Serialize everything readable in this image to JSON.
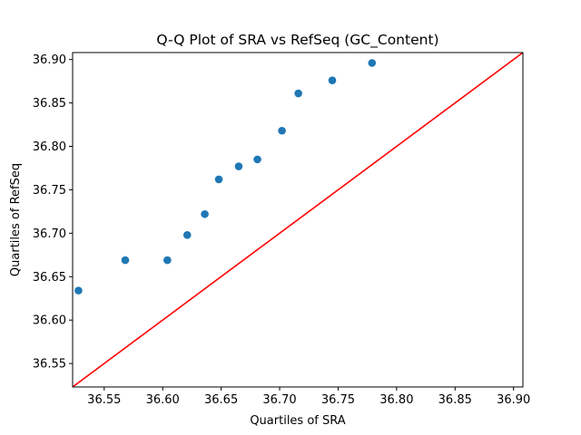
{
  "chart_data": {
    "type": "scatter",
    "title": "Q-Q Plot of SRA vs RefSeq (GC_Content)",
    "xlabel": "Quartiles of SRA",
    "ylabel": "Quartiles of RefSeq",
    "xlim": [
      36.523,
      36.908
    ],
    "ylim": [
      36.523,
      36.908
    ],
    "xticks": [
      36.55,
      36.6,
      36.65,
      36.7,
      36.75,
      36.8,
      36.85,
      36.9
    ],
    "yticks": [
      36.55,
      36.6,
      36.65,
      36.7,
      36.75,
      36.8,
      36.85,
      36.9
    ],
    "xtick_labels": [
      "36.55",
      "36.60",
      "36.65",
      "36.70",
      "36.75",
      "36.80",
      "36.85",
      "36.90"
    ],
    "ytick_labels": [
      "36.55",
      "36.60",
      "36.65",
      "36.70",
      "36.75",
      "36.80",
      "36.85",
      "36.90"
    ],
    "grid": false,
    "series": [
      {
        "type": "scatter",
        "color": "#1f77b4",
        "points": [
          {
            "x": 36.528,
            "y": 36.634
          },
          {
            "x": 36.568,
            "y": 36.669
          },
          {
            "x": 36.604,
            "y": 36.669
          },
          {
            "x": 36.621,
            "y": 36.698
          },
          {
            "x": 36.636,
            "y": 36.722
          },
          {
            "x": 36.648,
            "y": 36.762
          },
          {
            "x": 36.665,
            "y": 36.777
          },
          {
            "x": 36.681,
            "y": 36.785
          },
          {
            "x": 36.702,
            "y": 36.818
          },
          {
            "x": 36.716,
            "y": 36.861
          },
          {
            "x": 36.745,
            "y": 36.876
          },
          {
            "x": 36.779,
            "y": 36.896
          }
        ]
      },
      {
        "type": "reference-line",
        "color": "#ff0000",
        "from": {
          "x": 36.523,
          "y": 36.523
        },
        "to": {
          "x": 36.908,
          "y": 36.908
        }
      }
    ]
  }
}
